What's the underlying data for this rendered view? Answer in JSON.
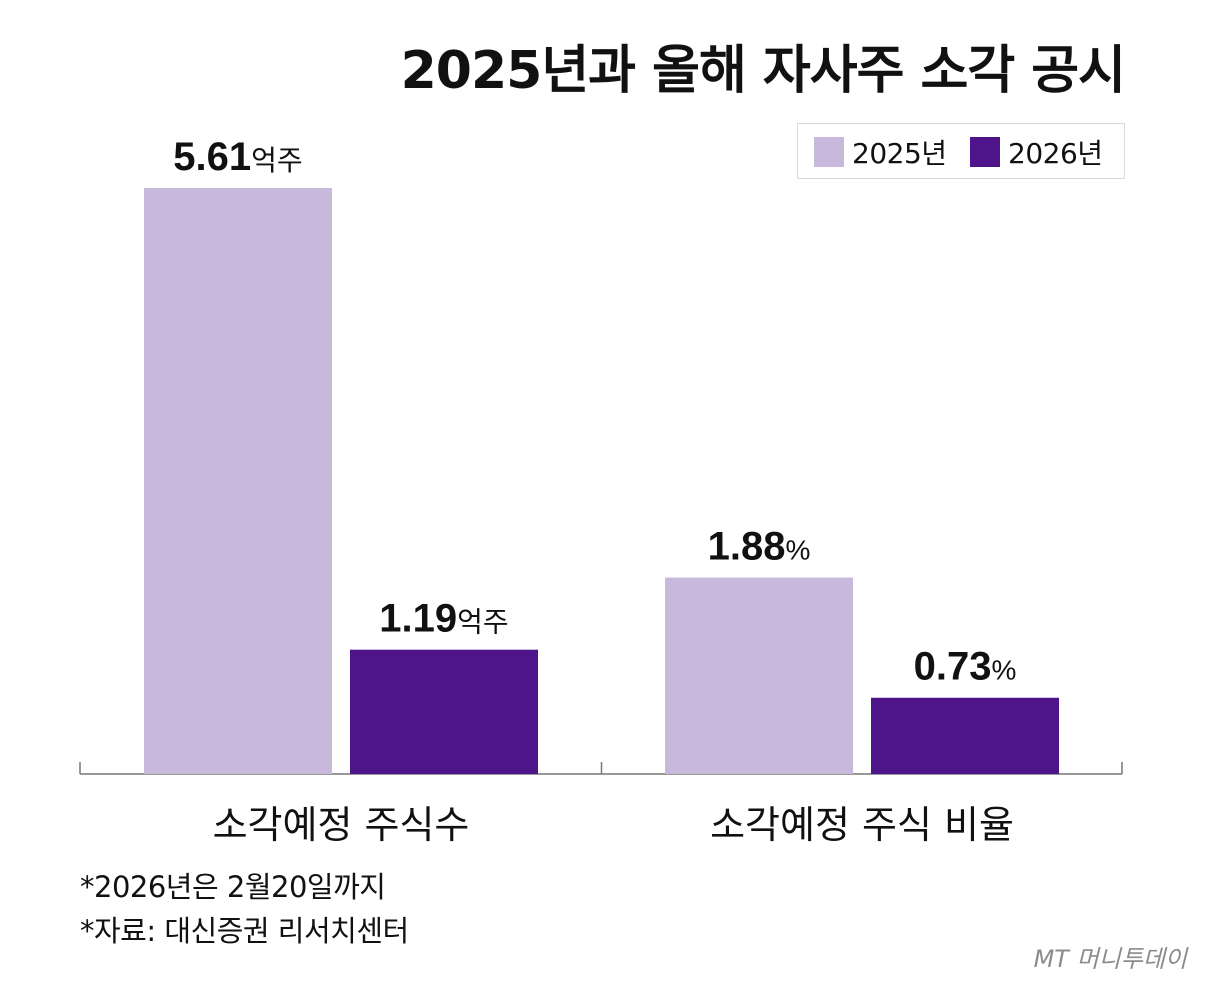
{
  "chart_data": {
    "type": "bar",
    "title": "2025년과 올해 자사주 소각 공시",
    "categories": [
      "소각예정 주식수",
      "소각예정 주식 비율"
    ],
    "series": [
      {
        "name": "2025년",
        "color": "#c8b8dc",
        "values": [
          5.61,
          1.88
        ],
        "labels": [
          {
            "num": "5.61",
            "unit": "억주"
          },
          {
            "num": "1.88",
            "unit": "%"
          }
        ]
      },
      {
        "name": "2026년",
        "color": "#4e148a",
        "values": [
          1.19,
          0.73
        ],
        "labels": [
          {
            "num": "1.19",
            "unit": "억주"
          },
          {
            "num": "0.73",
            "unit": "%"
          }
        ]
      }
    ],
    "category_scales": [
      {
        "max": 5.61
      },
      {
        "max": 5.61
      }
    ],
    "legend_position": "top-right",
    "grid": false
  },
  "footnotes": [
    "*2026년은 2월20일까지",
    "*자료: 대신증권 리서치센터"
  ],
  "logo": "MT 머니투데이"
}
